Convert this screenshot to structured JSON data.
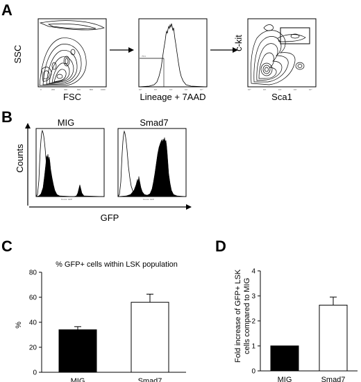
{
  "panels": {
    "A": {
      "letter": "A",
      "plot1": {
        "ylabel": "SSC",
        "xlabel": "FSC"
      },
      "plot2": {
        "xlabel": "Lineage + 7AAD",
        "gate_label": "75.6"
      },
      "plot3": {
        "ylabel": "c-kit",
        "xlabel": "Sca1"
      }
    },
    "B": {
      "letter": "B",
      "ylabel": "Counts",
      "xlabel": "GFP",
      "hist1_title": "MIG",
      "hist2_title": "Smad7",
      "hist_axis_caption": "FL1-H: GFP"
    },
    "C": {
      "letter": "C",
      "title": "% GFP+ cells within LSK population",
      "ylabel": "%"
    },
    "D": {
      "letter": "D",
      "ylabel_line1": "Fold increase of GFP+ LSK",
      "ylabel_line2": "cells compared to MIG"
    }
  },
  "colors": {
    "filled_bar": "#000000",
    "open_bar": "#ffffff"
  },
  "chart_data": [
    {
      "panel": "C",
      "type": "bar",
      "title": "% GFP+ cells within LSK population",
      "categories": [
        "MIG",
        "Smad7"
      ],
      "values": [
        34,
        56
      ],
      "errors": [
        2.5,
        6.5
      ],
      "fills": [
        "#000000",
        "#ffffff"
      ],
      "ylabel": "%",
      "ylim": [
        0,
        80
      ],
      "yticks": [
        0,
        20,
        40,
        60,
        80
      ],
      "grid": false,
      "legend": "none"
    },
    {
      "panel": "D",
      "type": "bar",
      "categories": [
        "MIG",
        "Smad7"
      ],
      "values": [
        1,
        2.63
      ],
      "errors": [
        0,
        0.32
      ],
      "fills": [
        "#000000",
        "#ffffff"
      ],
      "ylabel": "Fold increase of GFP+ LSK cells compared to MIG",
      "ylim": [
        0,
        4
      ],
      "yticks": [
        0,
        1,
        2,
        3,
        4
      ],
      "grid": false,
      "legend": "none"
    }
  ]
}
